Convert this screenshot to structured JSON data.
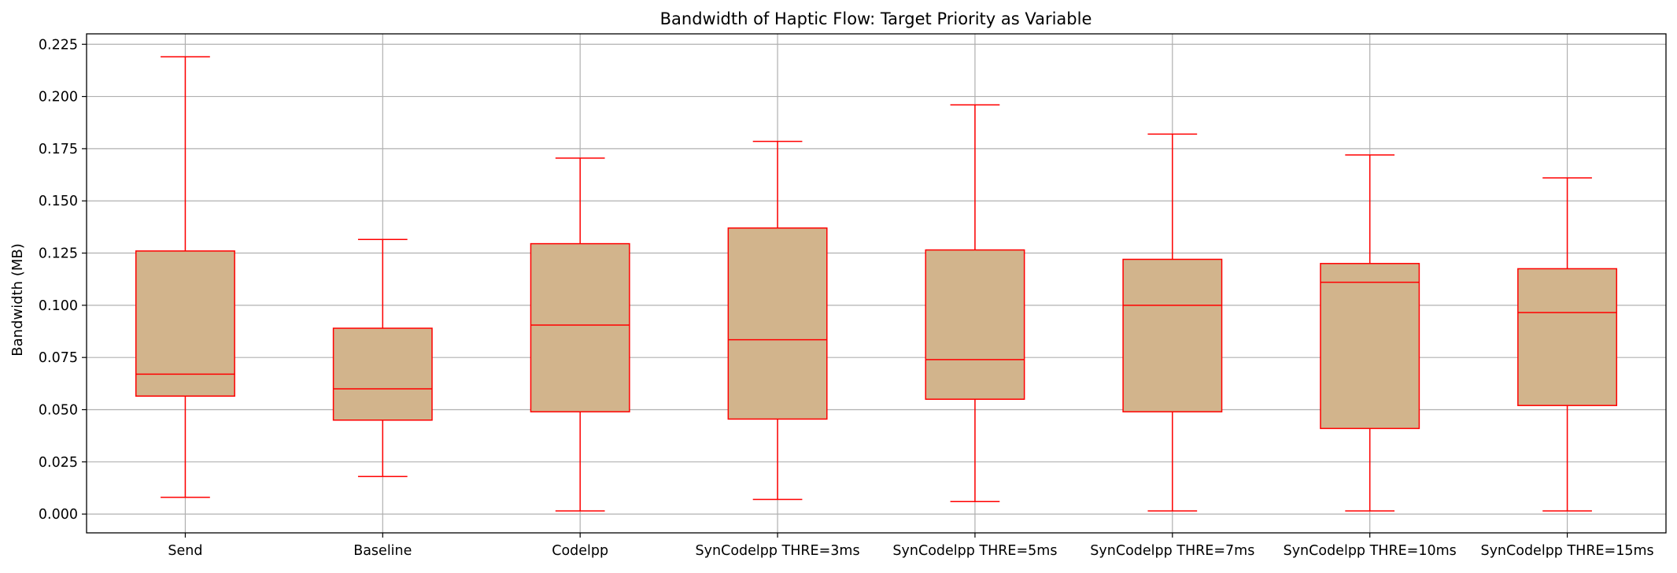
{
  "chart_data": {
    "type": "box",
    "title": "Bandwidth of Haptic Flow: Target Priority as Variable",
    "xlabel": "",
    "ylabel": "Bandwidth (MB)",
    "ylim": [
      -0.009,
      0.23
    ],
    "yticks": [
      "0.000",
      "0.025",
      "0.050",
      "0.075",
      "0.100",
      "0.125",
      "0.150",
      "0.175",
      "0.200",
      "0.225"
    ],
    "ytick_values": [
      0.0,
      0.025,
      0.05,
      0.075,
      0.1,
      0.125,
      0.15,
      0.175,
      0.2,
      0.225
    ],
    "grid": true,
    "colors": {
      "box_fill": "#d2b48c",
      "box_edge": "#ff0000",
      "grid": "#b0b0b0"
    },
    "categories": [
      "Send",
      "Baseline",
      "Codelpp",
      "SynCodelpp THRE=3ms",
      "SynCodelpp THRE=5ms",
      "SynCodelpp THRE=7ms",
      "SynCodelpp THRE=10ms",
      "SynCodelpp THRE=15ms"
    ],
    "boxes": [
      {
        "whisker_low": 0.008,
        "q1": 0.0565,
        "median": 0.067,
        "q3": 0.126,
        "whisker_high": 0.219
      },
      {
        "whisker_low": 0.018,
        "q1": 0.045,
        "median": 0.06,
        "q3": 0.089,
        "whisker_high": 0.1315
      },
      {
        "whisker_low": 0.0015,
        "q1": 0.049,
        "median": 0.0905,
        "q3": 0.1295,
        "whisker_high": 0.1705
      },
      {
        "whisker_low": 0.007,
        "q1": 0.0455,
        "median": 0.0835,
        "q3": 0.137,
        "whisker_high": 0.1785
      },
      {
        "whisker_low": 0.006,
        "q1": 0.055,
        "median": 0.074,
        "q3": 0.1265,
        "whisker_high": 0.196
      },
      {
        "whisker_low": 0.0015,
        "q1": 0.049,
        "median": 0.1,
        "q3": 0.122,
        "whisker_high": 0.182
      },
      {
        "whisker_low": 0.0015,
        "q1": 0.041,
        "median": 0.111,
        "q3": 0.12,
        "whisker_high": 0.172
      },
      {
        "whisker_low": 0.0015,
        "q1": 0.052,
        "median": 0.0965,
        "q3": 0.1175,
        "whisker_high": 0.161
      }
    ]
  }
}
